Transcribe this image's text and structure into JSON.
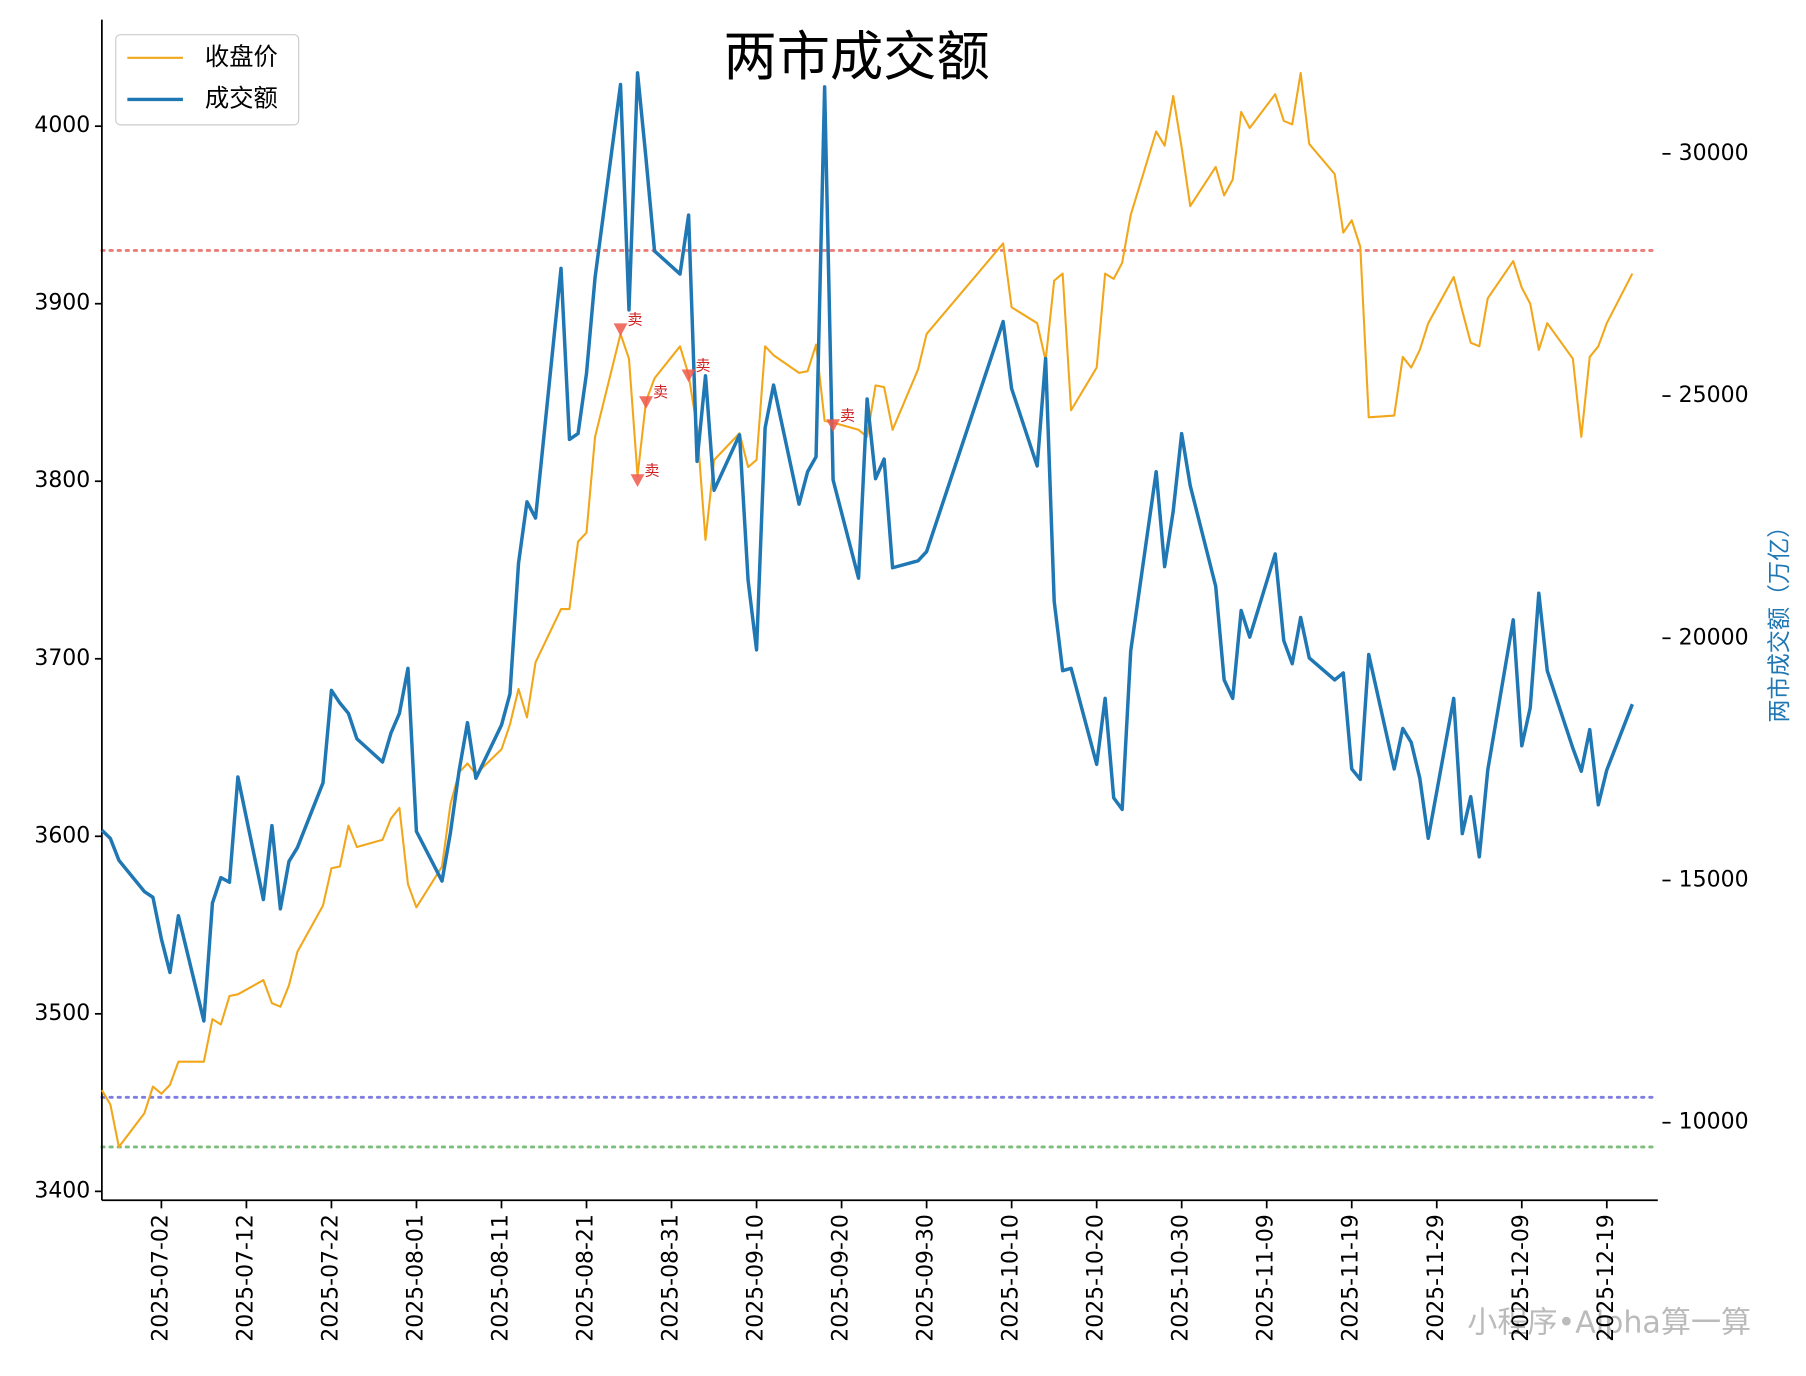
{
  "chart_data": {
    "type": "line",
    "title": "两市成交额",
    "y2label": "两市成交额（万亿）",
    "watermark": "小程序•Alpha算一算",
    "legend": "upper left",
    "xlim": [
      "2025-06-25",
      "2025-12-25"
    ],
    "xticks": [
      "2025-07-02",
      "2025-07-12",
      "2025-07-22",
      "2025-08-01",
      "2025-08-11",
      "2025-08-21",
      "2025-08-31",
      "2025-09-10",
      "2025-09-20",
      "2025-09-30",
      "2025-10-10",
      "2025-10-20",
      "2025-10-30",
      "2025-11-09",
      "2025-11-19",
      "2025-11-29",
      "2025-12-09",
      "2025-12-19"
    ],
    "ylim": [
      3395,
      4060
    ],
    "yticks": [
      3400,
      3500,
      3600,
      3700,
      3800,
      3900,
      4000
    ],
    "y2lim": [
      8400,
      32770
    ],
    "y2ticks": [
      10000,
      15000,
      20000,
      25000,
      30000
    ],
    "x": [
      "2025-06-25",
      "2025-06-26",
      "2025-06-27",
      "2025-06-30",
      "2025-07-01",
      "2025-07-02",
      "2025-07-03",
      "2025-07-04",
      "2025-07-07",
      "2025-07-08",
      "2025-07-09",
      "2025-07-10",
      "2025-07-11",
      "2025-07-14",
      "2025-07-15",
      "2025-07-16",
      "2025-07-17",
      "2025-07-18",
      "2025-07-21",
      "2025-07-22",
      "2025-07-23",
      "2025-07-24",
      "2025-07-25",
      "2025-07-28",
      "2025-07-29",
      "2025-07-30",
      "2025-07-31",
      "2025-08-01",
      "2025-08-04",
      "2025-08-05",
      "2025-08-06",
      "2025-08-07",
      "2025-08-08",
      "2025-08-11",
      "2025-08-12",
      "2025-08-13",
      "2025-08-14",
      "2025-08-15",
      "2025-08-18",
      "2025-08-19",
      "2025-08-20",
      "2025-08-21",
      "2025-08-22",
      "2025-08-25",
      "2025-08-26",
      "2025-08-27",
      "2025-08-28",
      "2025-08-29",
      "2025-09-01",
      "2025-09-02",
      "2025-09-03",
      "2025-09-04",
      "2025-09-05",
      "2025-09-08",
      "2025-09-09",
      "2025-09-10",
      "2025-09-11",
      "2025-09-12",
      "2025-09-15",
      "2025-09-16",
      "2025-09-17",
      "2025-09-18",
      "2025-09-19",
      "2025-09-22",
      "2025-09-23",
      "2025-09-24",
      "2025-09-25",
      "2025-09-26",
      "2025-09-29",
      "2025-09-30",
      "2025-10-09",
      "2025-10-10",
      "2025-10-13",
      "2025-10-14",
      "2025-10-15",
      "2025-10-16",
      "2025-10-17",
      "2025-10-20",
      "2025-10-21",
      "2025-10-22",
      "2025-10-23",
      "2025-10-24",
      "2025-10-27",
      "2025-10-28",
      "2025-10-29",
      "2025-10-30",
      "2025-10-31",
      "2025-11-03",
      "2025-11-04",
      "2025-11-05",
      "2025-11-06",
      "2025-11-07",
      "2025-11-10",
      "2025-11-11",
      "2025-11-12",
      "2025-11-13",
      "2025-11-14",
      "2025-11-17",
      "2025-11-18",
      "2025-11-19",
      "2025-11-20",
      "2025-11-21",
      "2025-11-24",
      "2025-11-25",
      "2025-11-26",
      "2025-11-27",
      "2025-11-28",
      "2025-12-01",
      "2025-12-02",
      "2025-12-03",
      "2025-12-04",
      "2025-12-05",
      "2025-12-08",
      "2025-12-09",
      "2025-12-10",
      "2025-12-11",
      "2025-12-12",
      "2025-12-15",
      "2025-12-16",
      "2025-12-17",
      "2025-12-18",
      "2025-12-19",
      "2025-12-22"
    ],
    "series": [
      {
        "name": "收盘价",
        "color": "#f2a71b",
        "axis": "y",
        "values": [
          3457,
          3449,
          3425,
          3444,
          3459,
          3455,
          3460,
          3473,
          3473,
          3497,
          3494,
          3510,
          3511,
          3519,
          3506,
          3504,
          3516,
          3535,
          3561,
          3582,
          3583,
          3606,
          3594,
          3598,
          3610,
          3616,
          3573,
          3560,
          3583,
          3618,
          3636,
          3641,
          3635,
          3649,
          3663,
          3683,
          3667,
          3698,
          3728,
          3728,
          3766,
          3771,
          3825,
          3883,
          3869,
          3803,
          3845,
          3858,
          3876,
          3860,
          3830,
          3767,
          3812,
          3827,
          3808,
          3812,
          3876,
          3871,
          3861,
          3862,
          3877,
          3834,
          3833,
          3829,
          3825,
          3854,
          3853,
          3829,
          3863,
          3883,
          3934,
          3898,
          3889,
          3868,
          3913,
          3917,
          3840,
          3864,
          3917,
          3914,
          3923,
          3950,
          3997,
          3989,
          4017,
          3988,
          3955,
          3977,
          3961,
          3970,
          4008,
          3999,
          4018,
          4003,
          4001,
          4030,
          3990,
          3973,
          3940,
          3947,
          3932,
          3836,
          3837,
          3870,
          3864,
          3874,
          3889,
          3915,
          3896,
          3878,
          3876,
          3903,
          3924,
          3909,
          3900,
          3874,
          3889,
          3869,
          3825,
          3870,
          3876,
          3889,
          3917
        ]
      },
      {
        "name": "成交额",
        "color": "#1f77b4",
        "axis": "y2",
        "values": [
          16038,
          15871,
          15418,
          14773,
          14654,
          13795,
          13103,
          14272,
          12100,
          14535,
          15060,
          14964,
          17136,
          14606,
          16134,
          14415,
          15394,
          15680,
          17017,
          18926,
          18663,
          18449,
          17924,
          17446,
          18043,
          18449,
          19380,
          16014,
          14988,
          15990,
          17255,
          18258,
          17112,
          18210,
          18854,
          21551,
          22816,
          22482,
          27637,
          24105,
          24224,
          25465,
          27446,
          31432,
          26778,
          31671,
          29905,
          27995,
          27518,
          28735,
          23652,
          25418,
          23055,
          24200,
          21193,
          19761,
          24344,
          25227,
          22768,
          23437,
          23747,
          31384,
          23270,
          21241,
          24940,
          23294,
          23700,
          21456,
          21599,
          21790,
          26539,
          25155,
          23556,
          25776,
          20764,
          19332,
          19380,
          17399,
          18759,
          16706,
          16468,
          19737,
          23437,
          21480,
          22625,
          24224,
          23150,
          21074,
          19141,
          18759,
          20573,
          20024,
          21742,
          19952,
          19475,
          20430,
          19594,
          19141,
          19284,
          17303,
          17088,
          19666,
          17303,
          18138,
          17852,
          17112,
          15871,
          18759,
          15967,
          16730,
          15489,
          17279,
          20382,
          17780,
          18568,
          20931,
          19332,
          17733,
          17255,
          18115,
          16563,
          17279,
          18640
        ]
      }
    ],
    "reference_lines": [
      {
        "value": 3930,
        "color": "#e8706a"
      },
      {
        "value": 3453,
        "color": "#7070e0"
      },
      {
        "value": 3425,
        "color": "#70b870"
      }
    ],
    "annotations": [
      {
        "x": "2025-08-25",
        "y": 3885,
        "label": "卖",
        "color": "#f0584a"
      },
      {
        "x": "2025-08-27",
        "y": 3800,
        "label": "卖",
        "color": "#f0584a"
      },
      {
        "x": "2025-08-28",
        "y": 3844,
        "label": "卖",
        "color": "#f0584a"
      },
      {
        "x": "2025-09-02",
        "y": 3859,
        "label": "卖",
        "color": "#f0584a"
      },
      {
        "x": "2025-09-19",
        "y": 3831,
        "label": "卖",
        "color": "#f0584a"
      }
    ]
  }
}
